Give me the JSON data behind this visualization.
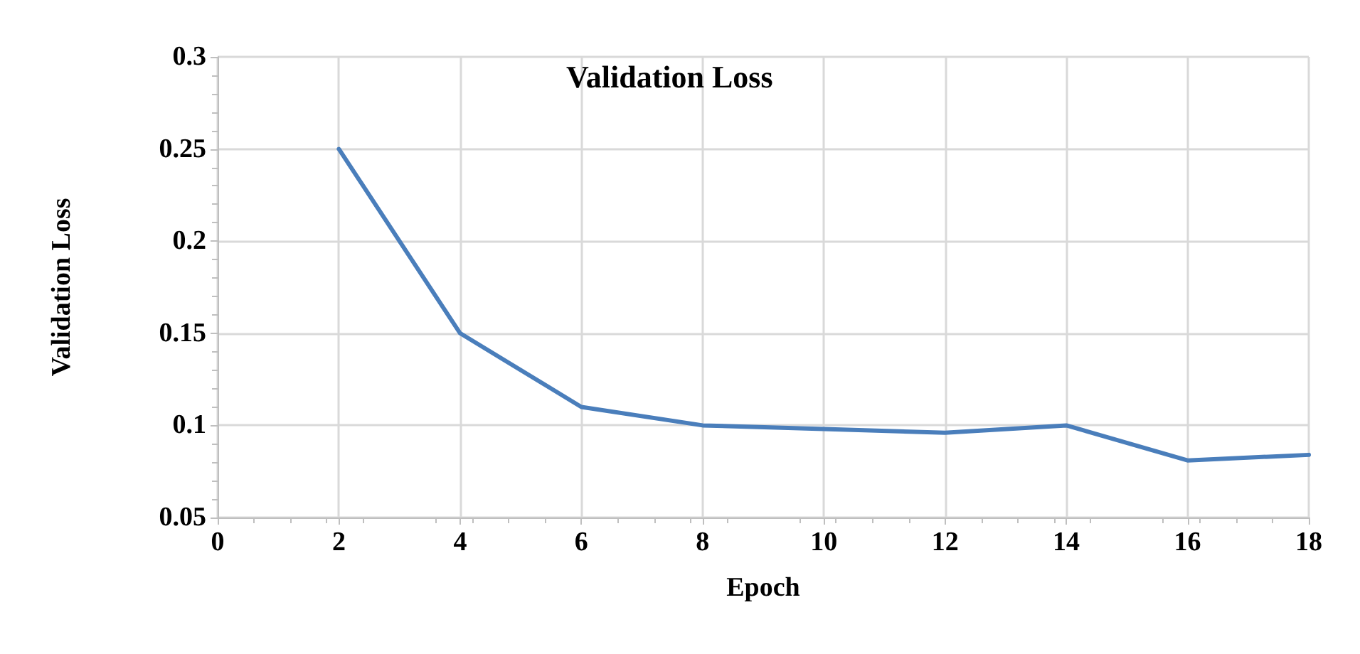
{
  "chart_data": {
    "type": "line",
    "title": "Validation Loss",
    "xlabel": "Epoch",
    "ylabel": "Validation Loss",
    "x": [
      2,
      4,
      6,
      8,
      10,
      12,
      14,
      16,
      18
    ],
    "series": [
      {
        "color": "#4a7ebb",
        "values": [
          0.25,
          0.15,
          0.11,
          0.1,
          0.098,
          0.096,
          0.1,
          0.081,
          0.084
        ]
      }
    ],
    "xlim": [
      0,
      18
    ],
    "xticks": [
      0,
      2,
      4,
      6,
      8,
      10,
      12,
      14,
      16,
      18
    ],
    "ylim": [
      0.05,
      0.3
    ],
    "yticks": [
      0.05,
      0.1,
      0.15,
      0.2,
      0.25,
      0.3
    ],
    "grid": true,
    "marker": "none",
    "line_style": "solid"
  }
}
